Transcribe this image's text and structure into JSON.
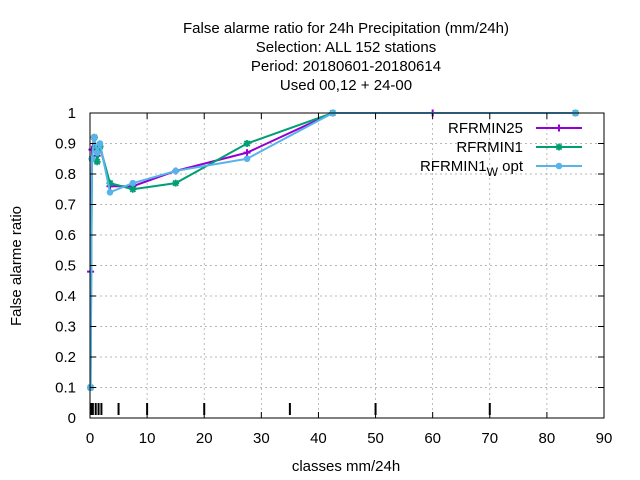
{
  "chart_data": {
    "type": "line",
    "title_lines": [
      "False alarme ratio  for 24h Precipitation (mm/24h)",
      "Selection: ALL    152 stations",
      "Period: 20180601-20180614",
      "Used  00,12  + 24-00"
    ],
    "xlabel": "classes mm/24h",
    "ylabel": "False alarme ratio",
    "xlim": [
      0,
      90
    ],
    "ylim": [
      0,
      1
    ],
    "x_ticks": [
      0,
      10,
      20,
      30,
      40,
      50,
      60,
      70,
      80,
      90
    ],
    "y_ticks": [
      0,
      0.1,
      0.2,
      0.3,
      0.4,
      0.5,
      0.6,
      0.7,
      0.8,
      0.9,
      1
    ],
    "x_tick_labels": [
      "0",
      "10",
      "20",
      "30",
      "40",
      "50",
      "60",
      "70",
      "80",
      "90"
    ],
    "y_tick_labels": [
      "0",
      "0.1",
      "0.2",
      "0.3",
      "0.4",
      "0.5",
      "0.6",
      "0.7",
      "0.8",
      "0.9",
      "1"
    ],
    "grid": true,
    "legend_position": "top-right",
    "class_limits": [
      0.2,
      0.5,
      1,
      1.5,
      2,
      5,
      10,
      20,
      35,
      50,
      70
    ],
    "series": [
      {
        "name": "RFRMIN25",
        "color": "#9400d3",
        "marker": "plus",
        "x": [
          0.1,
          0.35,
          0.75,
          1.25,
          1.75,
          3.5,
          7.5,
          15,
          27.5,
          42.5,
          60,
          85
        ],
        "y": [
          0.48,
          0.88,
          0.92,
          0.86,
          0.89,
          0.76,
          0.76,
          0.81,
          0.87,
          1.0,
          1.0,
          1.0
        ]
      },
      {
        "name": "RFRMIN1",
        "color": "#009e73",
        "marker": "star",
        "x": [
          0.1,
          0.35,
          0.75,
          1.25,
          1.75,
          3.5,
          7.5,
          15,
          27.5,
          42.5,
          85
        ],
        "y": [
          0.1,
          0.85,
          0.92,
          0.84,
          0.89,
          0.77,
          0.75,
          0.77,
          0.9,
          1.0,
          1.0
        ]
      },
      {
        "name": "RFRMIN1",
        "name_subscript": "W",
        "name_suffix": " opt",
        "color": "#56b4e9",
        "marker": "circle",
        "x": [
          0.1,
          0.35,
          0.75,
          1.25,
          1.75,
          3.5,
          7.5,
          15,
          27.5,
          42.5,
          85
        ],
        "y": [
          0.1,
          0.85,
          0.92,
          0.87,
          0.9,
          0.74,
          0.77,
          0.81,
          0.85,
          1.0,
          1.0
        ]
      }
    ]
  }
}
